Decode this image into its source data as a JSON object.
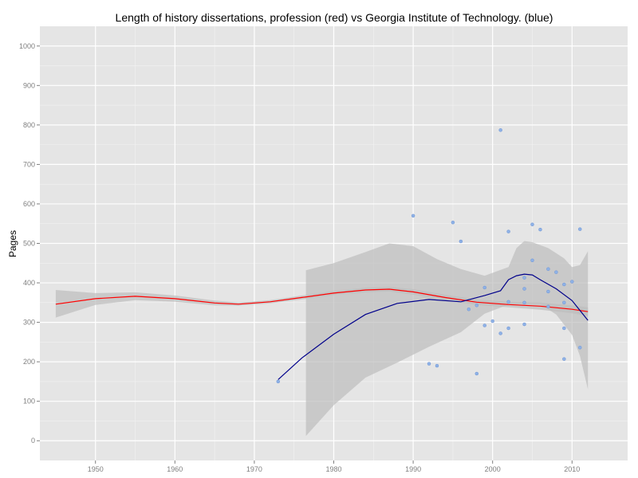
{
  "chart_data": {
    "type": "scatter",
    "title": "Length of history dissertations, profession (red) vs Georgia Institute of Technology. (blue)",
    "xlabel": "",
    "ylabel": "Pages",
    "xlim": [
      1943,
      2017
    ],
    "ylim": [
      -50,
      1050
    ],
    "x_ticks": [
      1950,
      1960,
      1970,
      1980,
      1990,
      2000,
      2010
    ],
    "y_ticks": [
      0,
      100,
      200,
      300,
      400,
      500,
      600,
      700,
      800,
      900,
      1000
    ],
    "grid": true,
    "colors": {
      "panel_background": "#e5e5e5",
      "grid": "#ffffff",
      "points": "#8fb2e6",
      "profession_line": "#ff0000",
      "georgia_tech_line": "#00008b",
      "confidence_band": "#bdbdbd"
    },
    "series": [
      {
        "type": "scatter",
        "points": [
          [
            1973,
            150
          ],
          [
            1990,
            570
          ],
          [
            1992,
            195
          ],
          [
            1993,
            190
          ],
          [
            1995,
            553
          ],
          [
            1996,
            505
          ],
          [
            1997,
            333
          ],
          [
            1998,
            343
          ],
          [
            1998,
            170
          ],
          [
            1999,
            292
          ],
          [
            1999,
            388
          ],
          [
            2000,
            303
          ],
          [
            2001,
            272
          ],
          [
            2001,
            787
          ],
          [
            2002,
            352
          ],
          [
            2002,
            285
          ],
          [
            2002,
            530
          ],
          [
            2004,
            350
          ],
          [
            2004,
            295
          ],
          [
            2004,
            385
          ],
          [
            2004,
            413
          ],
          [
            2005,
            548
          ],
          [
            2005,
            457
          ],
          [
            2006,
            535
          ],
          [
            2007,
            378
          ],
          [
            2007,
            435
          ],
          [
            2007,
            340
          ],
          [
            2008,
            427
          ],
          [
            2009,
            350
          ],
          [
            2009,
            207
          ],
          [
            2009,
            285
          ],
          [
            2009,
            396
          ],
          [
            2010,
            403
          ],
          [
            2011,
            236
          ],
          [
            2011,
            536
          ]
        ]
      },
      {
        "type": "line",
        "points": [
          [
            1945,
            346
          ],
          [
            1950,
            360
          ],
          [
            1955,
            366
          ],
          [
            1960,
            360
          ],
          [
            1965,
            349
          ],
          [
            1968,
            346
          ],
          [
            1972,
            352
          ],
          [
            1976,
            363
          ],
          [
            1980,
            374
          ],
          [
            1984,
            382
          ],
          [
            1987,
            384
          ],
          [
            1990,
            377
          ],
          [
            1994,
            363
          ],
          [
            1998,
            351
          ],
          [
            2002,
            345
          ],
          [
            2006,
            341
          ],
          [
            2010,
            333
          ],
          [
            2012,
            327
          ]
        ],
        "band_upper": [
          [
            1945,
            382
          ],
          [
            1950,
            374
          ],
          [
            1955,
            376
          ],
          [
            1960,
            368
          ],
          [
            1965,
            355
          ],
          [
            1968,
            350
          ],
          [
            1972,
            356
          ],
          [
            1976,
            368
          ],
          [
            1980,
            379
          ],
          [
            1984,
            388
          ],
          [
            1987,
            390
          ],
          [
            1990,
            384
          ],
          [
            1994,
            370
          ],
          [
            1998,
            358
          ],
          [
            2002,
            352
          ],
          [
            2006,
            350
          ],
          [
            2010,
            343
          ],
          [
            2012,
            338
          ]
        ],
        "band_lower": [
          [
            1945,
            312
          ],
          [
            1950,
            344
          ],
          [
            1955,
            356
          ],
          [
            1960,
            352
          ],
          [
            1965,
            343
          ],
          [
            1968,
            342
          ],
          [
            1972,
            348
          ],
          [
            1976,
            358
          ],
          [
            1980,
            369
          ],
          [
            1984,
            376
          ],
          [
            1987,
            378
          ],
          [
            1990,
            370
          ],
          [
            1994,
            356
          ],
          [
            1998,
            344
          ],
          [
            2002,
            338
          ],
          [
            2006,
            332
          ],
          [
            2010,
            323
          ],
          [
            2012,
            316
          ]
        ]
      },
      {
        "type": "line",
        "points": [
          [
            1973,
            155
          ],
          [
            1976,
            210
          ],
          [
            1980,
            270
          ],
          [
            1984,
            320
          ],
          [
            1988,
            348
          ],
          [
            1992,
            358
          ],
          [
            1996,
            352
          ],
          [
            1999,
            368
          ],
          [
            2001,
            380
          ],
          [
            2002,
            408
          ],
          [
            2003,
            418
          ],
          [
            2004,
            422
          ],
          [
            2005,
            420
          ],
          [
            2006,
            408
          ],
          [
            2008,
            385
          ],
          [
            2010,
            355
          ],
          [
            2012,
            305
          ]
        ],
        "band_upper": [
          [
            1976.5,
            432
          ],
          [
            1980,
            450
          ],
          [
            1984,
            478
          ],
          [
            1987,
            500
          ],
          [
            1990,
            493
          ],
          [
            1993,
            460
          ],
          [
            1996,
            435
          ],
          [
            1999,
            418
          ],
          [
            2002,
            440
          ],
          [
            2003,
            488
          ],
          [
            2004,
            506
          ],
          [
            2005,
            503
          ],
          [
            2007,
            488
          ],
          [
            2009,
            462
          ],
          [
            2010,
            440
          ],
          [
            2011,
            445
          ],
          [
            2012,
            480
          ]
        ],
        "band_lower": [
          [
            1976.5,
            12
          ],
          [
            1980,
            90
          ],
          [
            1984,
            160
          ],
          [
            1988,
            198
          ],
          [
            1992,
            238
          ],
          [
            1996,
            275
          ],
          [
            1999,
            322
          ],
          [
            2002,
            345
          ],
          [
            2004,
            346
          ],
          [
            2006,
            346
          ],
          [
            2008,
            320
          ],
          [
            2010,
            268
          ],
          [
            2011,
            215
          ],
          [
            2012,
            130
          ]
        ]
      }
    ]
  }
}
